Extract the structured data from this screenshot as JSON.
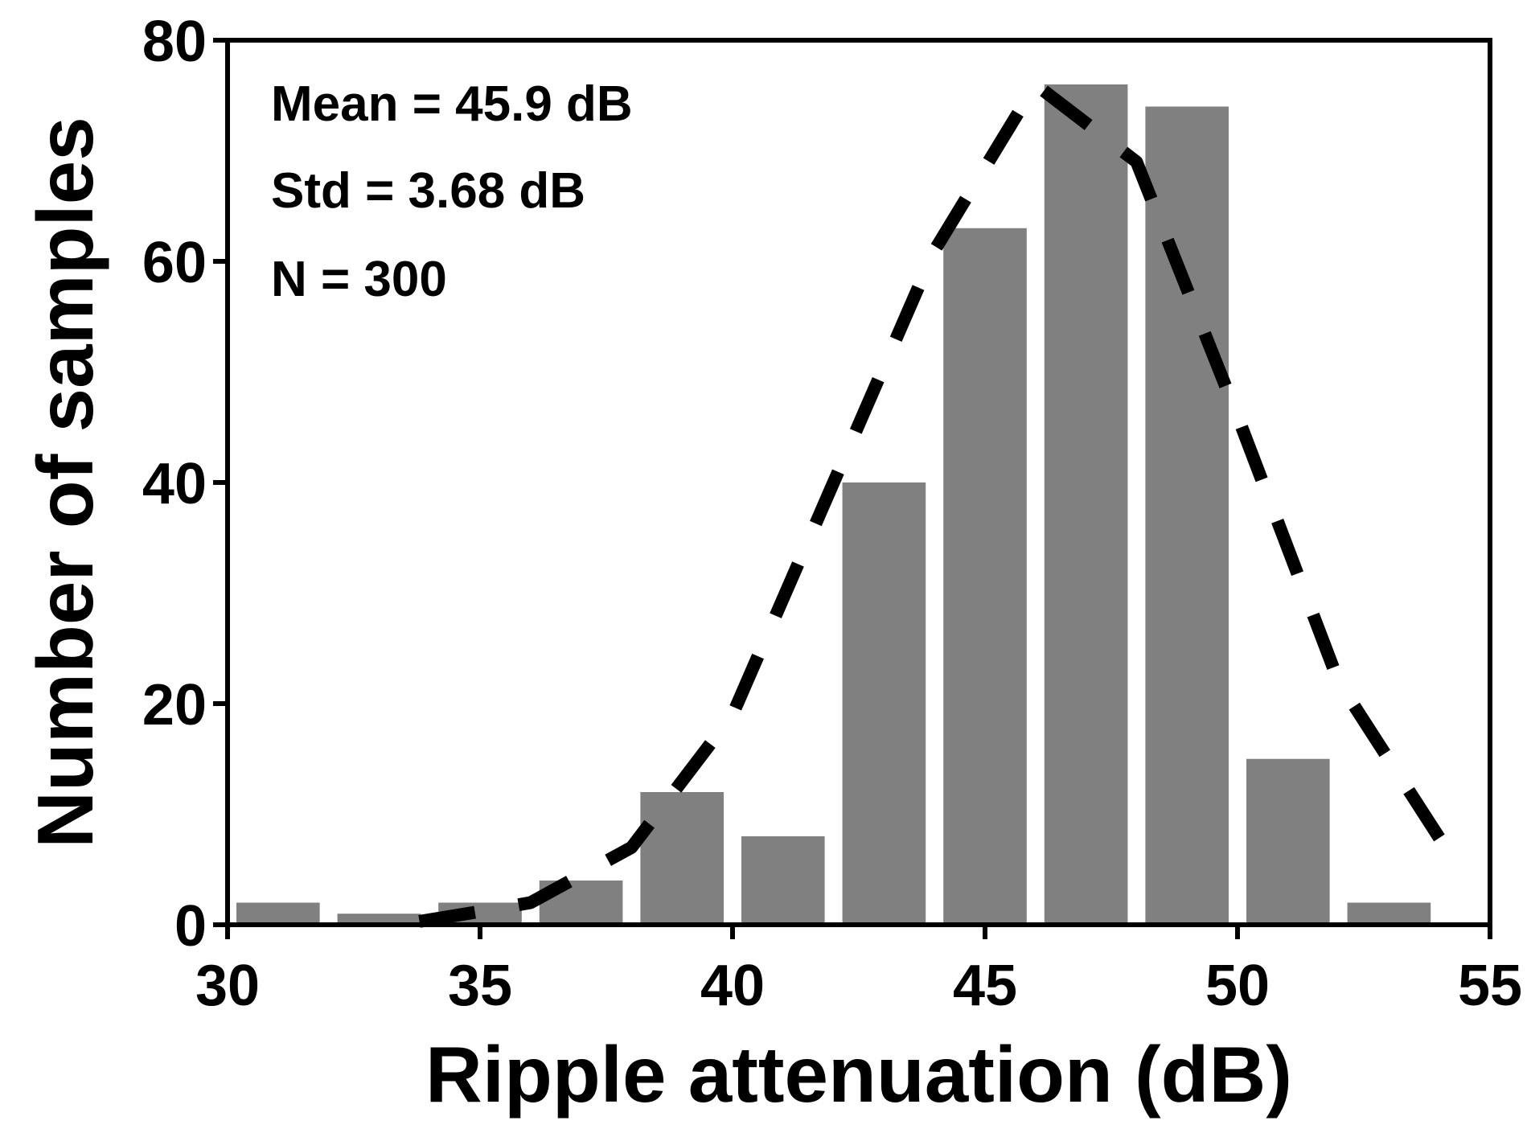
{
  "chart_data": {
    "type": "bar",
    "title": "",
    "xlabel": "Ripple attenuation (dB)",
    "ylabel": "Number of samples",
    "xlim": [
      30,
      55
    ],
    "ylim": [
      0,
      80
    ],
    "xticks": [
      30,
      35,
      40,
      45,
      50,
      55
    ],
    "yticks": [
      0,
      20,
      40,
      60,
      80
    ],
    "bin_width": 2,
    "bar_width": 1.65,
    "bins": [
      {
        "center": 31,
        "value": 2
      },
      {
        "center": 33,
        "value": 1
      },
      {
        "center": 35,
        "value": 2
      },
      {
        "center": 37,
        "value": 4
      },
      {
        "center": 39,
        "value": 12
      },
      {
        "center": 41,
        "value": 8
      },
      {
        "center": 43,
        "value": 40
      },
      {
        "center": 45,
        "value": 63
      },
      {
        "center": 47,
        "value": 76
      },
      {
        "center": 49,
        "value": 74
      },
      {
        "center": 51,
        "value": 15
      },
      {
        "center": 53,
        "value": 2
      }
    ],
    "bar_color": "#808080",
    "fit_curve": {
      "style": "dashed",
      "color": "#000000",
      "x": [
        33.8,
        35,
        36,
        38,
        40,
        42,
        44,
        46,
        48,
        50,
        52,
        54.4
      ],
      "y": [
        0.3,
        1.2,
        2,
        7,
        19,
        40,
        61,
        76,
        69,
        46,
        22,
        5
      ]
    },
    "annotations": [
      "Mean = 45.9 dB",
      "Std = 3.68 dB",
      "N = 300"
    ]
  }
}
